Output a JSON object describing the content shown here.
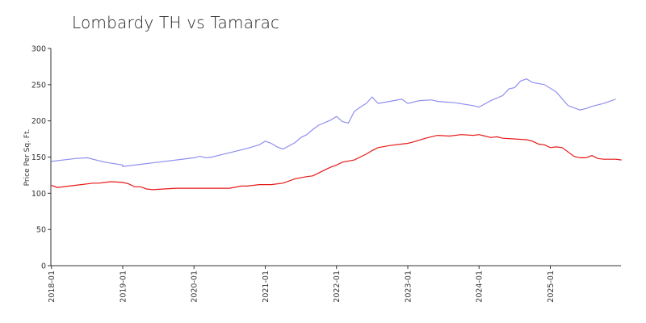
{
  "chart_data": {
    "type": "line",
    "title": "Lombardy TH vs Tamarac",
    "ylabel": "Price Per Sq. Ft.",
    "xlabel": "",
    "ylim": [
      0,
      300
    ],
    "yticks": [
      0,
      50,
      100,
      150,
      200,
      250,
      300
    ],
    "xlim": [
      "2018-01",
      "2025-12"
    ],
    "xticks": [
      "2018-01",
      "2019-01",
      "2020-01",
      "2021-01",
      "2022-01",
      "2023-01",
      "2024-01",
      "2025-01"
    ],
    "grid": false,
    "series": [
      {
        "color": "#8f8ff0",
        "points": [
          [
            "2018-01",
            144
          ],
          [
            "2018-05",
            148
          ],
          [
            "2018-07",
            149
          ],
          [
            "2018-10",
            143
          ],
          [
            "2019-01",
            139
          ],
          [
            "2019-01",
            137
          ],
          [
            "2019-04",
            140
          ],
          [
            "2019-07",
            143
          ],
          [
            "2019-10",
            146
          ],
          [
            "2020-01",
            149
          ],
          [
            "2020-02",
            151
          ],
          [
            "2020-03",
            149
          ],
          [
            "2020-04",
            150
          ],
          [
            "2020-06",
            154
          ],
          [
            "2020-08",
            158
          ],
          [
            "2020-10",
            162
          ],
          [
            "2020-12",
            167
          ],
          [
            "2021-01",
            172
          ],
          [
            "2021-02",
            169
          ],
          [
            "2021-03",
            164
          ],
          [
            "2021-04",
            161
          ],
          [
            "2021-06",
            170
          ],
          [
            "2021-07",
            177
          ],
          [
            "2021-08",
            181
          ],
          [
            "2021-09",
            188
          ],
          [
            "2021-10",
            194
          ],
          [
            "2021-12",
            201
          ],
          [
            "2022-01",
            206
          ],
          [
            "2022-02",
            199
          ],
          [
            "2022-03",
            197
          ],
          [
            "2022-04",
            213
          ],
          [
            "2022-05",
            219
          ],
          [
            "2022-06",
            224
          ],
          [
            "2022-07",
            233
          ],
          [
            "2022-08",
            224
          ],
          [
            "2022-10",
            227
          ],
          [
            "2022-12",
            230
          ],
          [
            "2023-01",
            224
          ],
          [
            "2023-03",
            228
          ],
          [
            "2023-05",
            229
          ],
          [
            "2023-06",
            227
          ],
          [
            "2023-09",
            225
          ],
          [
            "2023-12",
            221
          ],
          [
            "2024-01",
            219
          ],
          [
            "2024-03",
            228
          ],
          [
            "2024-05",
            235
          ],
          [
            "2024-06",
            244
          ],
          [
            "2024-07",
            246
          ],
          [
            "2024-08",
            255
          ],
          [
            "2024-09",
            258
          ],
          [
            "2024-10",
            253
          ],
          [
            "2024-12",
            250
          ],
          [
            "2025-02",
            240
          ],
          [
            "2025-04",
            221
          ],
          [
            "2025-06",
            215
          ],
          [
            "2025-07",
            217
          ],
          [
            "2025-08",
            220
          ],
          [
            "2025-10",
            224
          ],
          [
            "2025-12",
            230
          ]
        ]
      },
      {
        "color": "#e81818",
        "points": [
          [
            "2018-01",
            111
          ],
          [
            "2018-02",
            108
          ],
          [
            "2018-04",
            110
          ],
          [
            "2018-06",
            112
          ],
          [
            "2018-08",
            114
          ],
          [
            "2018-09",
            114
          ],
          [
            "2018-11",
            116
          ],
          [
            "2019-01",
            115
          ],
          [
            "2019-02",
            113
          ],
          [
            "2019-03",
            109
          ],
          [
            "2019-04",
            109
          ],
          [
            "2019-05",
            106
          ],
          [
            "2019-06",
            105
          ],
          [
            "2019-08",
            106
          ],
          [
            "2019-10",
            107
          ],
          [
            "2020-01",
            107
          ],
          [
            "2020-03",
            107
          ],
          [
            "2020-04",
            107
          ],
          [
            "2020-07",
            107
          ],
          [
            "2020-09",
            110
          ],
          [
            "2020-10",
            110
          ],
          [
            "2020-12",
            112
          ],
          [
            "2021-02",
            112
          ],
          [
            "2021-04",
            114
          ],
          [
            "2021-06",
            120
          ],
          [
            "2021-08",
            123
          ],
          [
            "2021-09",
            124
          ],
          [
            "2021-10",
            128
          ],
          [
            "2021-11",
            132
          ],
          [
            "2021-12",
            136
          ],
          [
            "2022-01",
            139
          ],
          [
            "2022-02",
            143
          ],
          [
            "2022-04",
            146
          ],
          [
            "2022-06",
            154
          ],
          [
            "2022-07",
            159
          ],
          [
            "2022-08",
            163
          ],
          [
            "2022-10",
            166
          ],
          [
            "2022-12",
            168
          ],
          [
            "2023-01",
            169
          ],
          [
            "2023-02",
            171
          ],
          [
            "2023-04",
            176
          ],
          [
            "2023-06",
            180
          ],
          [
            "2023-08",
            179
          ],
          [
            "2023-10",
            181
          ],
          [
            "2023-12",
            180
          ],
          [
            "2024-01",
            181
          ],
          [
            "2024-02",
            179
          ],
          [
            "2024-03",
            177
          ],
          [
            "2024-04",
            178
          ],
          [
            "2024-05",
            176
          ],
          [
            "2024-07",
            175
          ],
          [
            "2024-09",
            174
          ],
          [
            "2024-10",
            172
          ],
          [
            "2024-11",
            168
          ],
          [
            "2024-12",
            167
          ],
          [
            "2025-01",
            163
          ],
          [
            "2025-02",
            164
          ],
          [
            "2025-03",
            163
          ],
          [
            "2025-04",
            157
          ],
          [
            "2025-05",
            151
          ],
          [
            "2025-06",
            149
          ],
          [
            "2025-07",
            149
          ],
          [
            "2025-08",
            152
          ],
          [
            "2025-09",
            148
          ],
          [
            "2025-10",
            147
          ],
          [
            "2025-12",
            147
          ],
          [
            "2026-01",
            146
          ]
        ]
      }
    ]
  }
}
